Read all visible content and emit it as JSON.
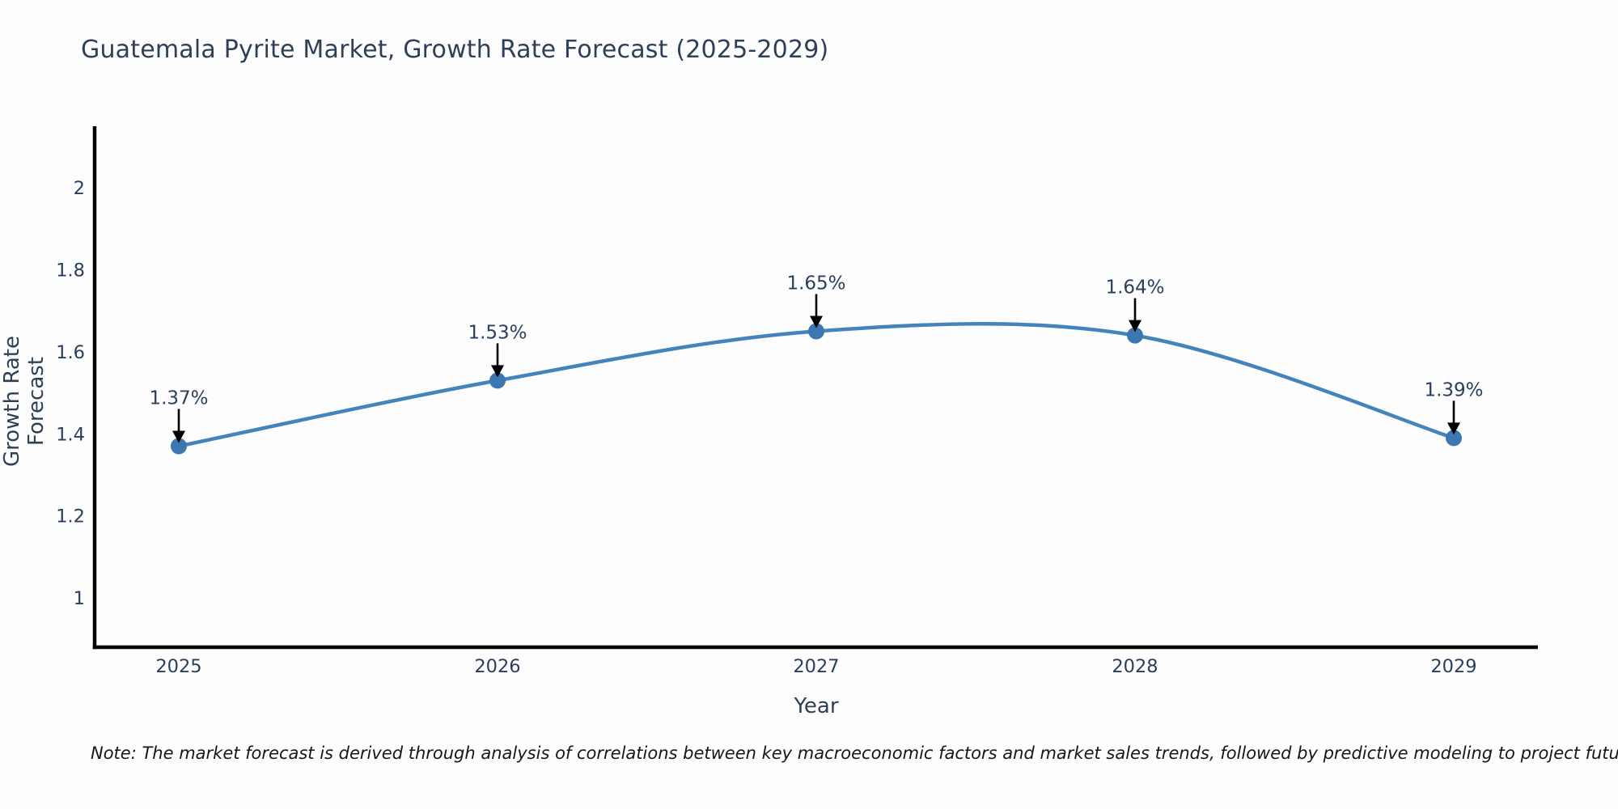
{
  "page": {
    "background": "#fdfdfd"
  },
  "note": {
    "text": "Note: The market forecast is derived through analysis of correlations between key macroeconomic factors and market sales trends, followed by predictive modeling to project future sales"
  },
  "chart_data": {
    "type": "line",
    "title": "Guatemala Pyrite Market, Growth Rate Forecast (2025-2029)",
    "xlabel": "Year",
    "ylabel": "Growth Rate Forecast",
    "x": [
      2025,
      2026,
      2027,
      2028,
      2029
    ],
    "series": [
      {
        "name": "Growth Rate Forecast",
        "values": [
          1.37,
          1.53,
          1.65,
          1.64,
          1.39
        ]
      }
    ],
    "point_labels": [
      "1.37%",
      "1.53%",
      "1.65%",
      "1.64%",
      "1.39%"
    ],
    "xticks": [
      2025,
      2026,
      2027,
      2028,
      2029
    ],
    "yticks": [
      2,
      1.8,
      1.6,
      1.4,
      1.2,
      1
    ],
    "xlim": [
      2024.736,
      2029.264
    ],
    "ylim": [
      0.88,
      2.146
    ],
    "grid": false,
    "legend": "none",
    "smooth": true,
    "annotation_style": "label-above-with-down-arrow",
    "colors": {
      "line": "#4583bb",
      "marker": "#3c78b0",
      "axis": "#000000",
      "tick_text": "#2a3f5f",
      "annotation_text": "#2a3f5f",
      "arrow": "#000000"
    }
  }
}
